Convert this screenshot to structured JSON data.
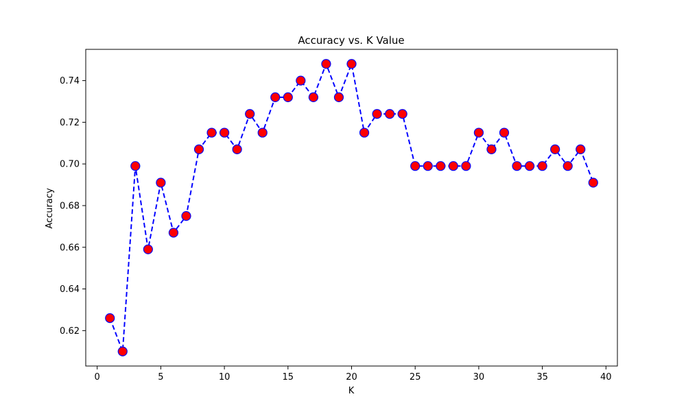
{
  "chart_data": {
    "type": "line",
    "title": "Accuracy vs. K Value",
    "xlabel": "K",
    "ylabel": "Accuracy",
    "xlim": [
      -0.9,
      40.9
    ],
    "ylim": [
      0.603,
      0.755
    ],
    "xticks": [
      0,
      5,
      10,
      15,
      20,
      25,
      30,
      35,
      40
    ],
    "yticks": [
      0.62,
      0.64,
      0.66,
      0.68,
      0.7,
      0.72,
      0.74
    ],
    "grid": false,
    "legend": "none",
    "series": [
      {
        "line_color": "#0000ff",
        "line_style": "dashed",
        "marker": "circle",
        "marker_face_color": "#ff0000",
        "marker_edge_color": "#0000ff",
        "x": [
          1,
          2,
          3,
          4,
          5,
          6,
          7,
          8,
          9,
          10,
          11,
          12,
          13,
          14,
          15,
          16,
          17,
          18,
          19,
          20,
          21,
          22,
          23,
          24,
          25,
          26,
          27,
          28,
          29,
          30,
          31,
          32,
          33,
          34,
          35,
          36,
          37,
          38,
          39
        ],
        "y": [
          0.626,
          0.61,
          0.699,
          0.659,
          0.691,
          0.667,
          0.675,
          0.707,
          0.715,
          0.715,
          0.707,
          0.724,
          0.715,
          0.732,
          0.732,
          0.74,
          0.732,
          0.748,
          0.732,
          0.748,
          0.715,
          0.724,
          0.724,
          0.724,
          0.699,
          0.699,
          0.699,
          0.699,
          0.699,
          0.715,
          0.707,
          0.715,
          0.699,
          0.699,
          0.699,
          0.707,
          0.699,
          0.707,
          0.691
        ]
      }
    ]
  }
}
